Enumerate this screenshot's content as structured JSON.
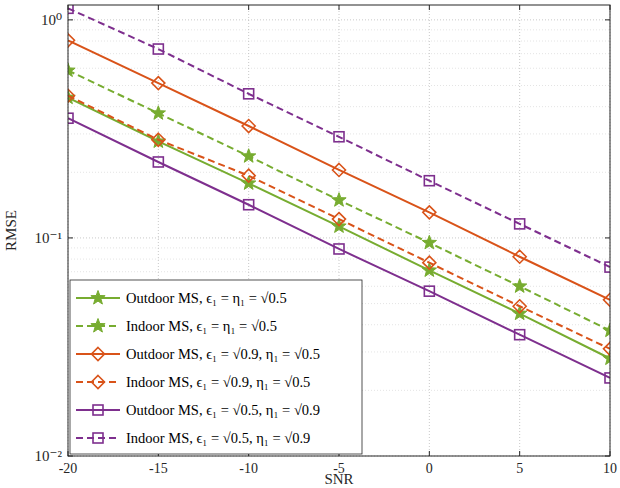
{
  "chart_data": {
    "type": "line",
    "x_label": "SNR",
    "y_label": "RMSE",
    "x": [
      -20,
      -15,
      -10,
      -5,
      0,
      5,
      10
    ],
    "xlim": [
      -20,
      10
    ],
    "xticks": [
      -20,
      -15,
      -10,
      -5,
      0,
      5,
      10
    ],
    "ylim": [
      0.01,
      1.17
    ],
    "yticks": [
      {
        "value": 0.01,
        "label": "10⁻²"
      },
      {
        "value": 0.1,
        "label": "10⁻¹"
      },
      {
        "value": 1,
        "label": "10⁰"
      }
    ],
    "log": "y",
    "grid": true,
    "legend": "lower left",
    "series": [
      {
        "name": "Outdoor MS, ϵ₁ = η₁ = √0.5",
        "color": "#77ac30",
        "marker": "star",
        "line_style": "solid",
        "values": [
          0.44,
          0.277,
          0.178,
          0.113,
          0.071,
          0.045,
          0.028
        ]
      },
      {
        "name": "Indoor MS, ϵ₁ = η₁ = √0.5",
        "color": "#77ac30",
        "marker": "star",
        "line_style": "dashed",
        "values": [
          0.586,
          0.373,
          0.237,
          0.149,
          0.095,
          0.06,
          0.0376
        ]
      },
      {
        "name": "Outdoor MS, ϵ₁ = √0.9, η₁ = √0.5",
        "color": "#d95319",
        "marker": "diamond",
        "line_style": "solid",
        "values": [
          0.806,
          0.513,
          0.326,
          0.205,
          0.131,
          0.082,
          0.052
        ]
      },
      {
        "name": "Indoor MS, ϵ₁ = √0.9, η₁ = √0.5",
        "color": "#d95319",
        "marker": "diamond",
        "line_style": "dashed",
        "values": [
          0.449,
          0.282,
          0.193,
          0.122,
          0.077,
          0.0486,
          0.031
        ]
      },
      {
        "name": "Outdoor MS, ϵ₁ = √0.5, η₁ = √0.9",
        "color": "#7e2f8e",
        "marker": "square",
        "line_style": "solid",
        "values": [
          0.354,
          0.223,
          0.142,
          0.089,
          0.057,
          0.036,
          0.0228
        ]
      },
      {
        "name": "Indoor MS, ϵ₁ = √0.5, η₁ = √0.9",
        "color": "#7e2f8e",
        "marker": "square",
        "line_style": "dashed",
        "values": [
          1.13,
          0.735,
          0.458,
          0.291,
          0.183,
          0.116,
          0.0735
        ]
      }
    ]
  }
}
